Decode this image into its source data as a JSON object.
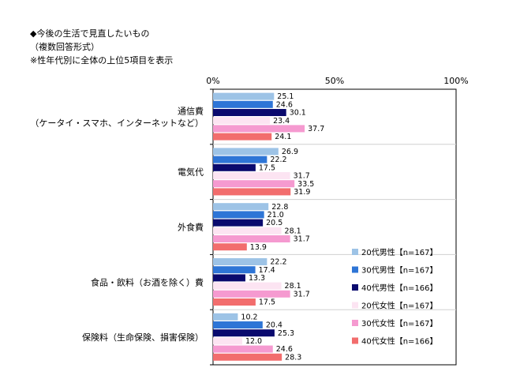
{
  "title": {
    "line1": "◆今後の生活で見直したいもの",
    "line2": "（複数回答形式）",
    "line3": "※性年代別に全体の上位5項目を表示"
  },
  "chart_data": {
    "type": "bar",
    "orientation": "horizontal",
    "title": "今後の生活で見直したいもの",
    "xlim": [
      0,
      100
    ],
    "x_ticks": [
      "0%",
      "50%",
      "100%"
    ],
    "grid": false,
    "legend_position": "bottom-right",
    "categories": [
      [
        "通信費",
        "（ケータイ・スマホ、インターネットなど）"
      ],
      [
        "電気代"
      ],
      [
        "外食費"
      ],
      [
        "食品・飲料（お酒を除く）費"
      ],
      [
        "保険料（生命保険、損害保険）"
      ]
    ],
    "series": [
      {
        "name": "20代男性【n=167】",
        "color": "#9dc3e6",
        "values": [
          25.1,
          26.9,
          22.8,
          22.2,
          10.2
        ]
      },
      {
        "name": "30代男性【n=167】",
        "color": "#2e75d6",
        "values": [
          24.6,
          22.2,
          21.0,
          17.4,
          20.4
        ]
      },
      {
        "name": "40代男性【n=166】",
        "color": "#0a0a6e",
        "values": [
          30.1,
          17.5,
          20.5,
          13.3,
          25.3
        ]
      },
      {
        "name": "20代女性【n=167】",
        "color": "#fce4f2",
        "values": [
          23.4,
          31.7,
          28.1,
          28.1,
          12.0
        ]
      },
      {
        "name": "30代女性【n=167】",
        "color": "#f59ad0",
        "values": [
          37.7,
          33.5,
          31.7,
          31.7,
          24.6
        ]
      },
      {
        "name": "40代女性【n=166】",
        "color": "#f26d6d",
        "values": [
          24.1,
          31.9,
          13.9,
          17.5,
          28.3
        ]
      }
    ]
  }
}
